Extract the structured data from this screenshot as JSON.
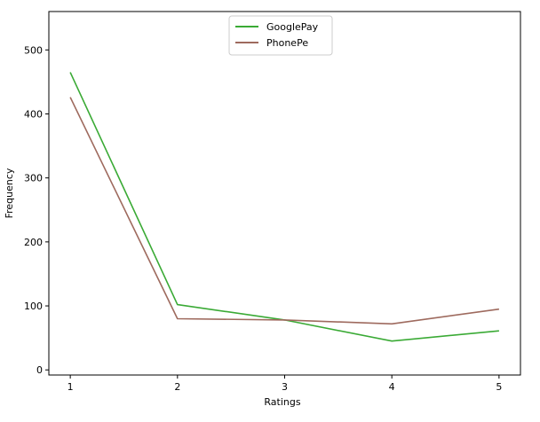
{
  "chart_data": {
    "type": "line",
    "title": "",
    "xlabel": "Ratings",
    "ylabel": "Frequency",
    "x": [
      1,
      2,
      3,
      4,
      5
    ],
    "x_ticks": [
      "1",
      "2",
      "3",
      "4",
      "5"
    ],
    "y_ticks": [
      "0",
      "100",
      "200",
      "300",
      "400",
      "500"
    ],
    "xlim": [
      0.8,
      5.2
    ],
    "ylim": [
      -8,
      560
    ],
    "grid": false,
    "legend_position": "upper-center",
    "series": [
      {
        "name": "GooglePay",
        "values": [
          465,
          102,
          78,
          45,
          61
        ],
        "color": "#3aaa35"
      },
      {
        "name": "PhonePe",
        "values": [
          426,
          80,
          78,
          72,
          95
        ],
        "color": "#9e6a5e"
      }
    ]
  }
}
